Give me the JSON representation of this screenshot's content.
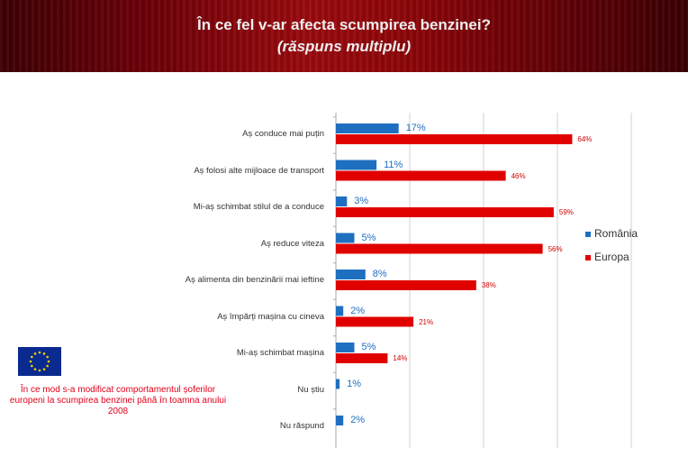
{
  "header": {
    "title": "În ce fel v-ar afecta scumpirea benzinei?",
    "subtitle": "(răspuns multiplu)"
  },
  "note": "În ce mod s-a modificat comportamentul șoferilor europeni la scumpirea benzinei până în toamna anului 2008",
  "logo": {
    "icon": "eu-flag-icon"
  },
  "chart_data": {
    "type": "bar",
    "orientation": "horizontal",
    "categories": [
      "Aș conduce mai puțin",
      "Aș folosi alte mijloace de transport",
      "Mi-aș schimbat stilul de a conduce",
      "Aș reduce viteza",
      "Aș alimenta din benzinării mai ieftine",
      "Aș împărți mașina cu cineva",
      "Mi-aș schimbat mașina",
      "Nu știu",
      "Nu răspund"
    ],
    "series": [
      {
        "name": "România",
        "color": "#1f6fc0",
        "values": [
          17,
          11,
          3,
          5,
          8,
          2,
          5,
          1,
          2
        ],
        "labels": [
          "17%",
          "11%",
          "3%",
          "5%",
          "8%",
          "2%",
          "5%",
          "1%",
          "2%"
        ]
      },
      {
        "name": "Europa",
        "color": "#e00000",
        "values": [
          64,
          46,
          59,
          56,
          38,
          21,
          14,
          null,
          null
        ],
        "labels": [
          "64%",
          "46%",
          "59%",
          "56%",
          "38%",
          "21%",
          "14%",
          null,
          null
        ]
      }
    ],
    "xlim": [
      0,
      80
    ],
    "grid": true,
    "legend": "right"
  }
}
